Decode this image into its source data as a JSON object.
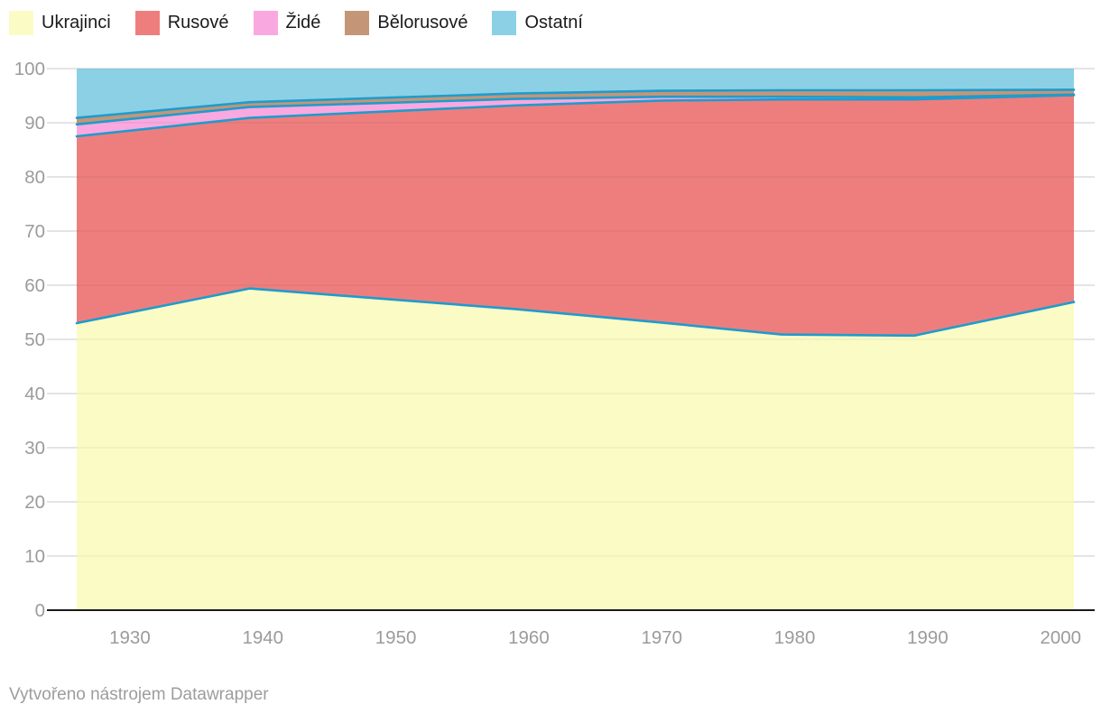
{
  "footer": {
    "attribution": "Vytvořeno nástrojem Datawrapper"
  },
  "colors": {
    "background": "#ffffff",
    "line_stroke": "#1e9ccd",
    "grid": "#e8e8e8",
    "grid_overlay": "rgba(0,0,0,0.05)",
    "zero_line": "#1a1a1a",
    "axis_text": "#9b9b9b",
    "legend_text": "#1b1b1d",
    "footer_text": "#9d9d9d"
  },
  "chart_data": {
    "type": "area",
    "stacked": true,
    "unit": "percent",
    "title": "",
    "xlabel": "",
    "ylabel": "",
    "grid": true,
    "legend_position": "top-left",
    "xlim": [
      1926,
      2001
    ],
    "ylim": [
      0,
      100
    ],
    "x": [
      1926,
      1939,
      1959,
      1970,
      1979,
      1989,
      2001
    ],
    "series": [
      {
        "name": "Ukrajinci",
        "color": "#fbfbc6",
        "values": [
          53.0,
          59.4,
          55.6,
          53.1,
          50.9,
          50.7,
          56.9
        ]
      },
      {
        "name": "Rusové",
        "color": "#ee7e7e",
        "values": [
          34.5,
          31.5,
          37.6,
          41.0,
          43.4,
          43.6,
          38.2
        ]
      },
      {
        "name": "Židé",
        "color": "#f9a9e0",
        "values": [
          2.2,
          2.0,
          1.2,
          0.7,
          0.5,
          0.4,
          0.1
        ]
      },
      {
        "name": "Bělorusové",
        "color": "#c49677",
        "values": [
          1.2,
          0.9,
          1.0,
          1.1,
          1.2,
          1.3,
          0.9
        ]
      },
      {
        "name": "Ostatní",
        "color": "#8cd0e5",
        "values": [
          9.1,
          6.2,
          4.6,
          4.1,
          4.0,
          4.0,
          3.9
        ]
      }
    ],
    "x_ticks": [
      1930,
      1940,
      1950,
      1960,
      1970,
      1980,
      1990,
      2000
    ],
    "y_ticks": [
      0,
      10,
      20,
      30,
      40,
      50,
      60,
      70,
      80,
      90,
      100
    ]
  }
}
